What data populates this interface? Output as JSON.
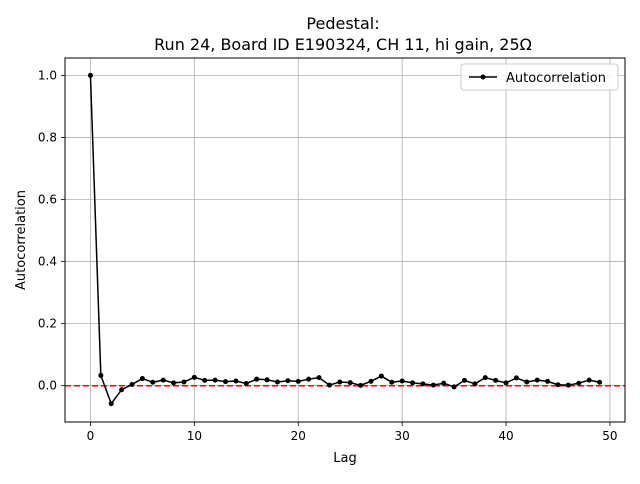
{
  "chart_data": {
    "type": "line",
    "title_line1": "Pedestal:",
    "title_line2": "Run 24, Board ID E190324, CH 11, hi gain, 25Ω",
    "xlabel": "Lag",
    "ylabel": "Autocorrelation",
    "xlim": [
      -2.45,
      51.45
    ],
    "ylim": [
      -0.117,
      1.056
    ],
    "xticks": [
      0,
      10,
      20,
      30,
      40,
      50
    ],
    "yticks": [
      0.0,
      0.2,
      0.4,
      0.6,
      0.8,
      1.0
    ],
    "xtick_labels": [
      "0",
      "10",
      "20",
      "30",
      "40",
      "50"
    ],
    "ytick_labels": [
      "0.0",
      "0.2",
      "0.4",
      "0.6",
      "0.8",
      "1.0"
    ],
    "grid": true,
    "legend_position": "top-right",
    "reference_line": {
      "y": 0,
      "color": "#e8000b",
      "style": "dashed"
    },
    "series": [
      {
        "name": "Autocorrelation",
        "color": "#000000",
        "x": [
          0,
          1,
          2,
          3,
          4,
          5,
          6,
          7,
          8,
          9,
          10,
          11,
          12,
          13,
          14,
          15,
          16,
          17,
          18,
          19,
          20,
          21,
          22,
          23,
          24,
          25,
          26,
          27,
          28,
          29,
          30,
          31,
          32,
          33,
          34,
          35,
          36,
          37,
          38,
          39,
          40,
          41,
          42,
          43,
          44,
          45,
          46,
          47,
          48,
          49
        ],
        "y": [
          1.0,
          0.033,
          -0.058,
          -0.013,
          0.004,
          0.023,
          0.011,
          0.018,
          0.009,
          0.012,
          0.027,
          0.017,
          0.018,
          0.013,
          0.015,
          0.007,
          0.021,
          0.019,
          0.012,
          0.016,
          0.014,
          0.021,
          0.026,
          0.002,
          0.012,
          0.01,
          0.001,
          0.014,
          0.031,
          0.011,
          0.015,
          0.009,
          0.006,
          0.002,
          0.008,
          -0.004,
          0.017,
          0.006,
          0.026,
          0.017,
          0.009,
          0.025,
          0.012,
          0.018,
          0.014,
          0.003,
          0.002,
          0.008,
          0.018,
          0.011
        ]
      }
    ]
  }
}
